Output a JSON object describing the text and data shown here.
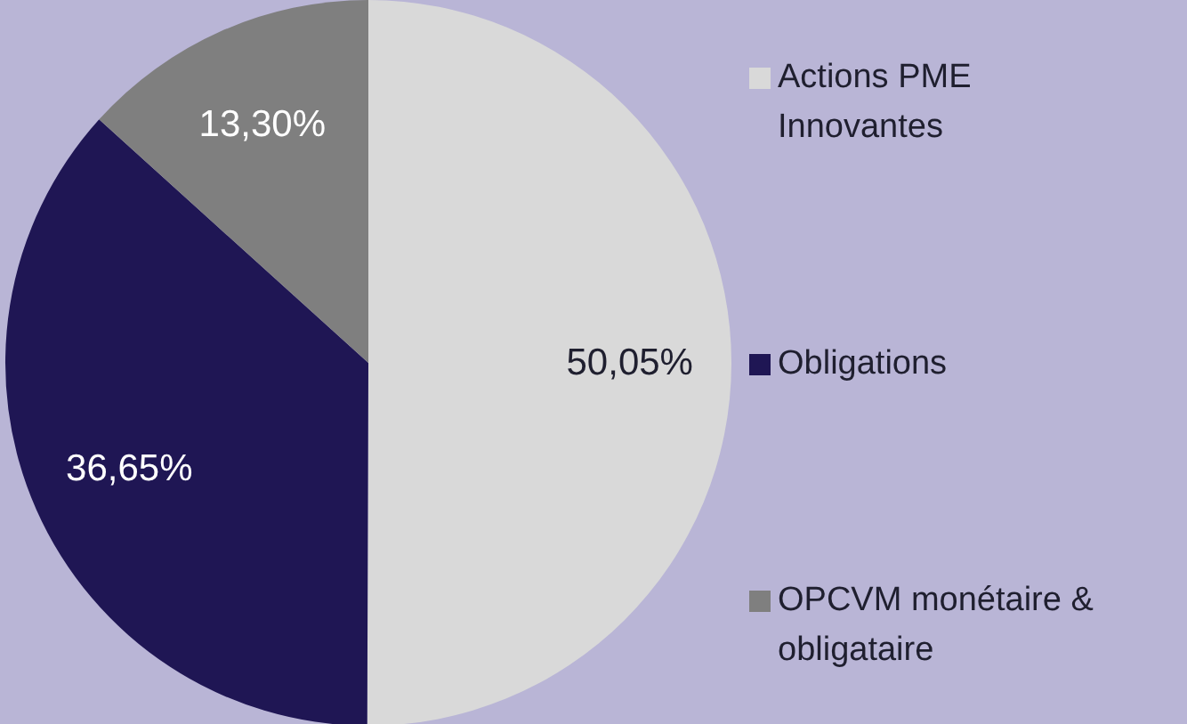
{
  "chart_data": {
    "type": "pie",
    "categories": [
      "Actions PME Innovantes",
      "Obligations",
      "OPCVM monétaire & obligataire"
    ],
    "values": [
      50.05,
      36.65,
      13.3
    ],
    "colors": [
      "#d9d9d9",
      "#1f1654",
      "#7f7f7f"
    ],
    "value_labels": [
      "50,05%",
      "36,65%",
      "13,30%"
    ],
    "legend": "right"
  }
}
